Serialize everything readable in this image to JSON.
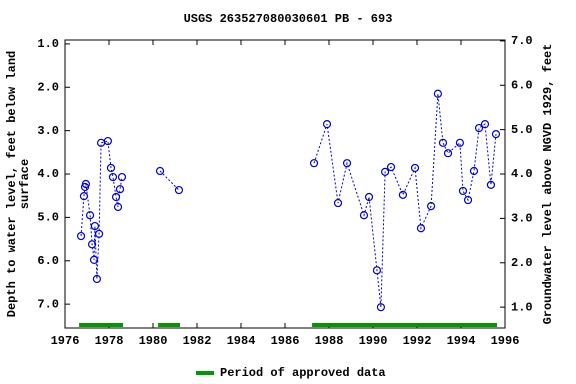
{
  "chart_data": {
    "type": "scatter-line",
    "title": "USGS 263527080030601 PB - 693",
    "ylabel": [
      "Depth to water level, feet below land",
      "surface"
    ],
    "y2label": "Groundwater level above NGVD 1929, feet",
    "xlim": [
      1976,
      1996
    ],
    "xticks": [
      1976,
      1978,
      1980,
      1982,
      1984,
      1986,
      1988,
      1990,
      1992,
      1994,
      1996
    ],
    "ylim": [
      7.55,
      0.91
    ],
    "yticks": [
      {
        "value": 1,
        "label": "1.0"
      },
      {
        "value": 2,
        "label": "2.0"
      },
      {
        "value": 3,
        "label": "3.0"
      },
      {
        "value": 4,
        "label": "4.0"
      },
      {
        "value": 5,
        "label": "5.0"
      },
      {
        "value": 6,
        "label": "6.0"
      },
      {
        "value": 7,
        "label": "7.0"
      }
    ],
    "y2lim": [
      0.53,
      7.02
    ],
    "y2ticks": [
      {
        "value": 1,
        "label": "1.0"
      },
      {
        "value": 2,
        "label": "2.0"
      },
      {
        "value": 3,
        "label": "3.0"
      },
      {
        "value": 4,
        "label": "4.0"
      },
      {
        "value": 5,
        "label": "5.0"
      },
      {
        "value": 6,
        "label": "6.0"
      },
      {
        "value": 7,
        "label": "7.0"
      }
    ],
    "series": [
      {
        "color": "#0000cc",
        "x": [
          1976.73,
          1976.86,
          1976.91,
          1976.95,
          1977.14,
          1977.23,
          1977.32,
          1977.36,
          1977.45,
          1977.55,
          1977.64,
          1977.95,
          1978.09,
          1978.18,
          1978.32,
          1978.41,
          1978.5,
          1978.59,
          null,
          1980.32,
          1981.18,
          null,
          1987.32,
          1987.91,
          1988.41,
          1988.82,
          1989.59,
          1989.82,
          1990.18,
          1990.36,
          1990.55,
          1990.82,
          1991.36,
          1991.91,
          1992.18,
          1992.64,
          1992.95,
          1993.18,
          1993.41,
          1993.95,
          1994.09,
          1994.32,
          1994.59,
          1994.82,
          1995.09,
          1995.36,
          1995.59
        ],
        "values": [
          5.43,
          4.51,
          4.3,
          4.23,
          4.95,
          5.62,
          5.98,
          5.2,
          6.42,
          5.38,
          3.28,
          3.24,
          3.86,
          4.07,
          4.53,
          4.76,
          4.35,
          4.07,
          null,
          3.93,
          4.37,
          null,
          3.75,
          2.85,
          4.67,
          3.75,
          4.95,
          4.53,
          6.22,
          7.07,
          3.95,
          3.84,
          4.48,
          3.86,
          5.25,
          4.74,
          2.15,
          3.28,
          3.52,
          3.28,
          4.39,
          4.6,
          3.93,
          2.94,
          2.85,
          4.25,
          3.08
        ]
      }
    ],
    "periods": {
      "name": "Period of approved data",
      "color": "#009900",
      "ranges": [
        [
          1976.64,
          1978.64
        ],
        [
          1980.23,
          1981.23
        ],
        [
          1987.23,
          1995.64
        ]
      ]
    }
  }
}
